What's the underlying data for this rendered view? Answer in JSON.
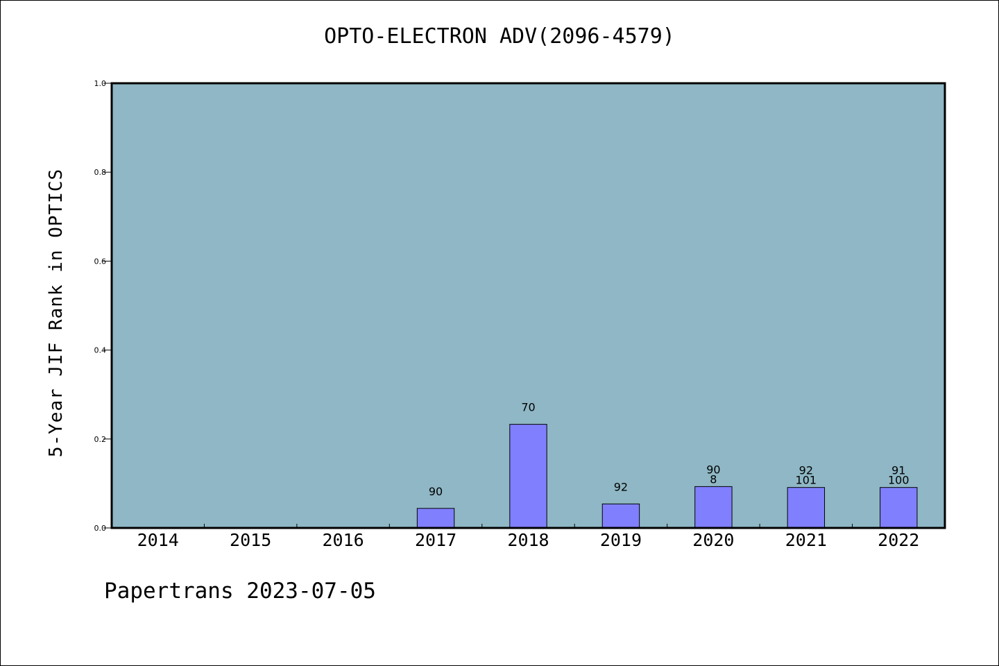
{
  "chart_data": {
    "type": "bar",
    "title": "OPTO-ELECTRON ADV(2096-4579)",
    "ylabel": "5-Year JIF Rank in OPTICS",
    "xlabel": "",
    "categories": [
      "2014",
      "2015",
      "2016",
      "2017",
      "2018",
      "2019",
      "2020",
      "2021",
      "2022"
    ],
    "values": [
      null,
      null,
      null,
      0.044,
      0.233,
      0.054,
      0.093,
      0.091,
      0.091
    ],
    "bar_labels": [
      [],
      [],
      [],
      [
        "90"
      ],
      [
        "70"
      ],
      [
        "92"
      ],
      [
        "90",
        "8"
      ],
      [
        "92",
        "101"
      ],
      [
        "91",
        "100"
      ]
    ],
    "ylim": [
      0.0,
      1.0
    ],
    "yticks": [
      0.0,
      0.2,
      0.4,
      0.6,
      0.8,
      1.0
    ],
    "ytick_labels": [
      "0.0",
      "0.2",
      "0.4",
      "0.6",
      "0.8",
      "1.0"
    ],
    "grid": false,
    "legend": "none",
    "colors": {
      "plot_background": "#8fb7c5",
      "bar_fill": "#8080ff",
      "bar_edge": "#000000",
      "axes_edge": "#000000"
    }
  },
  "footer": "Papertrans 2023-07-05"
}
